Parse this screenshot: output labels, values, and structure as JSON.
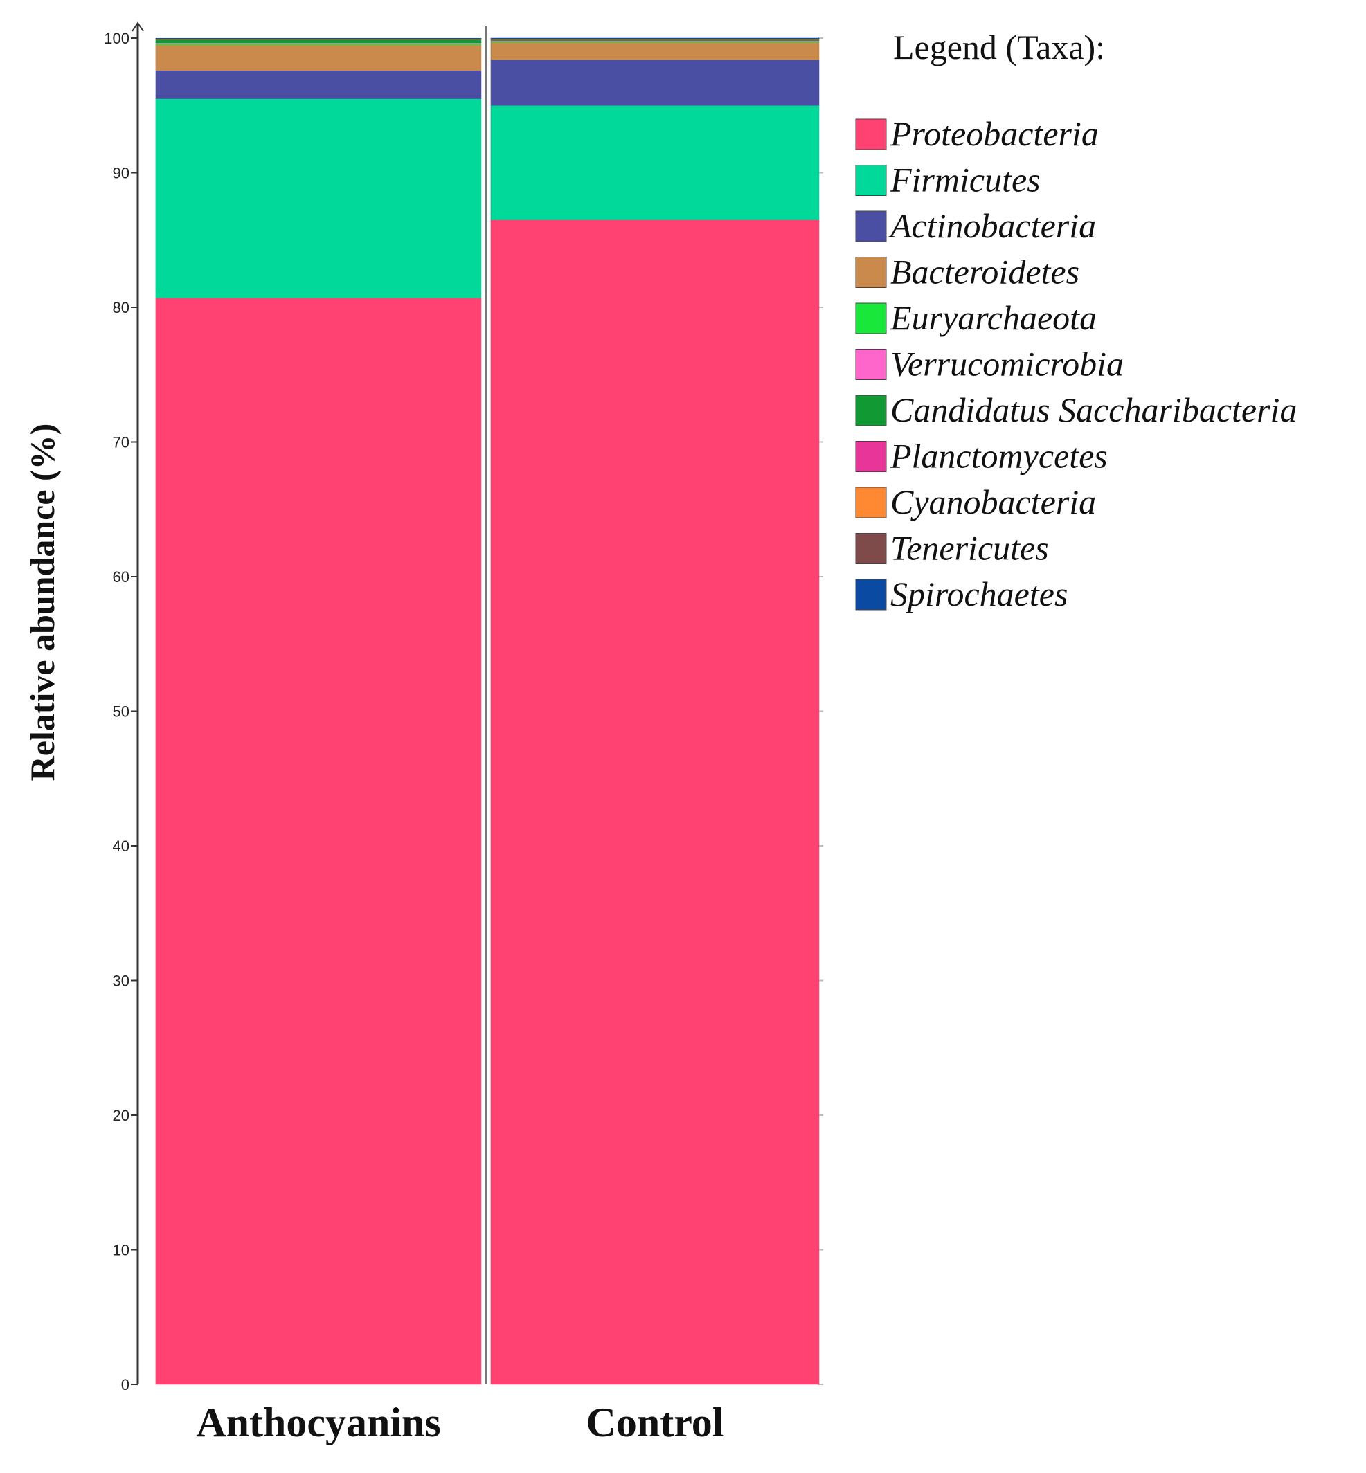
{
  "chart_data": {
    "type": "bar",
    "stacked": true,
    "title": "",
    "xlabel": "",
    "ylabel": "Relative abundance (%)",
    "ylim": [
      0,
      100
    ],
    "yticks": [
      0,
      10,
      20,
      30,
      40,
      50,
      60,
      70,
      80,
      90,
      100
    ],
    "categories": [
      "Anthocyanins",
      "Control"
    ],
    "legend_title": "Legend (Taxa):",
    "legend_position": "right",
    "series": [
      {
        "name": "Proteobacteria",
        "color": "#ff4272",
        "values": [
          80.7,
          86.5
        ]
      },
      {
        "name": "Firmicutes",
        "color": "#00d999",
        "values": [
          14.8,
          8.5
        ]
      },
      {
        "name": "Actinobacteria",
        "color": "#4a4fa3",
        "values": [
          2.1,
          3.4
        ]
      },
      {
        "name": "Bacteroidetes",
        "color": "#c98a4b",
        "values": [
          1.9,
          1.3
        ]
      },
      {
        "name": "Euryarchaeota",
        "color": "#19e83a",
        "values": [
          0.1,
          0.05
        ]
      },
      {
        "name": "Verrucomicrobia",
        "color": "#ff66cc",
        "values": [
          0.05,
          0.05
        ]
      },
      {
        "name": "Candidatus Saccharibacteria",
        "color": "#119933",
        "values": [
          0.25,
          0.1
        ]
      },
      {
        "name": "Planctomycetes",
        "color": "#e8359a",
        "values": [
          0.02,
          0.02
        ]
      },
      {
        "name": "Cyanobacteria",
        "color": "#ff8833",
        "values": [
          0.02,
          0.02
        ]
      },
      {
        "name": "Tenericutes",
        "color": "#7f4a4a",
        "values": [
          0.02,
          0.02
        ]
      },
      {
        "name": "Spirochaetes",
        "color": "#0a4aa3",
        "values": [
          0.03,
          0.04
        ]
      }
    ]
  }
}
